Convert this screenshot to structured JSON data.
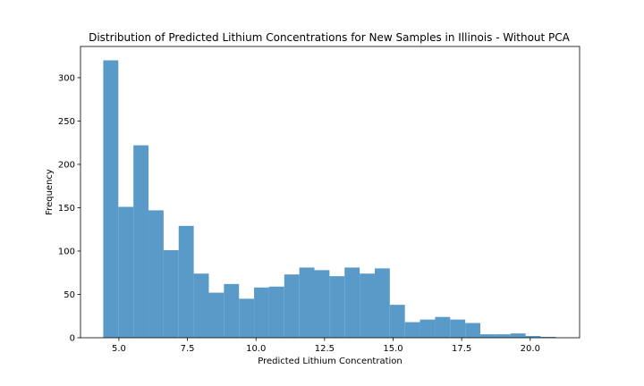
{
  "chart_data": {
    "type": "bar",
    "subtype": "histogram",
    "title": "Distribution of Predicted Lithium Concentrations for New Samples in Illinois - Without PCA",
    "xlabel": "Predicted Lithium Concentration",
    "ylabel": "Frequency",
    "xlim": [
      3.6,
      21.8
    ],
    "ylim": [
      0,
      336
    ],
    "xticks": [
      5.0,
      7.5,
      10.0,
      12.5,
      15.0,
      17.5,
      20.0
    ],
    "xtick_labels": [
      "5.0",
      "7.5",
      "10.0",
      "12.5",
      "15.0",
      "17.5",
      "20.0"
    ],
    "yticks": [
      0,
      50,
      100,
      150,
      200,
      250,
      300
    ],
    "ytick_labels": [
      "0",
      "50",
      "100",
      "150",
      "200",
      "250",
      "300"
    ],
    "bin_edges": [
      4.43,
      4.98,
      5.53,
      6.08,
      6.63,
      7.18,
      7.73,
      8.28,
      8.83,
      9.38,
      9.93,
      10.48,
      11.03,
      11.58,
      12.13,
      12.68,
      13.23,
      13.78,
      14.33,
      14.88,
      15.43,
      15.98,
      16.53,
      17.08,
      17.63,
      18.18,
      18.73,
      19.28,
      19.83,
      20.38,
      20.93
    ],
    "counts": [
      320,
      151,
      222,
      147,
      101,
      129,
      74,
      52,
      62,
      45,
      58,
      59,
      73,
      81,
      78,
      71,
      81,
      74,
      80,
      38,
      18,
      21,
      24,
      21,
      17,
      4,
      4,
      5,
      2,
      1
    ],
    "bar_color": "#5a9ac9",
    "grid": false
  }
}
